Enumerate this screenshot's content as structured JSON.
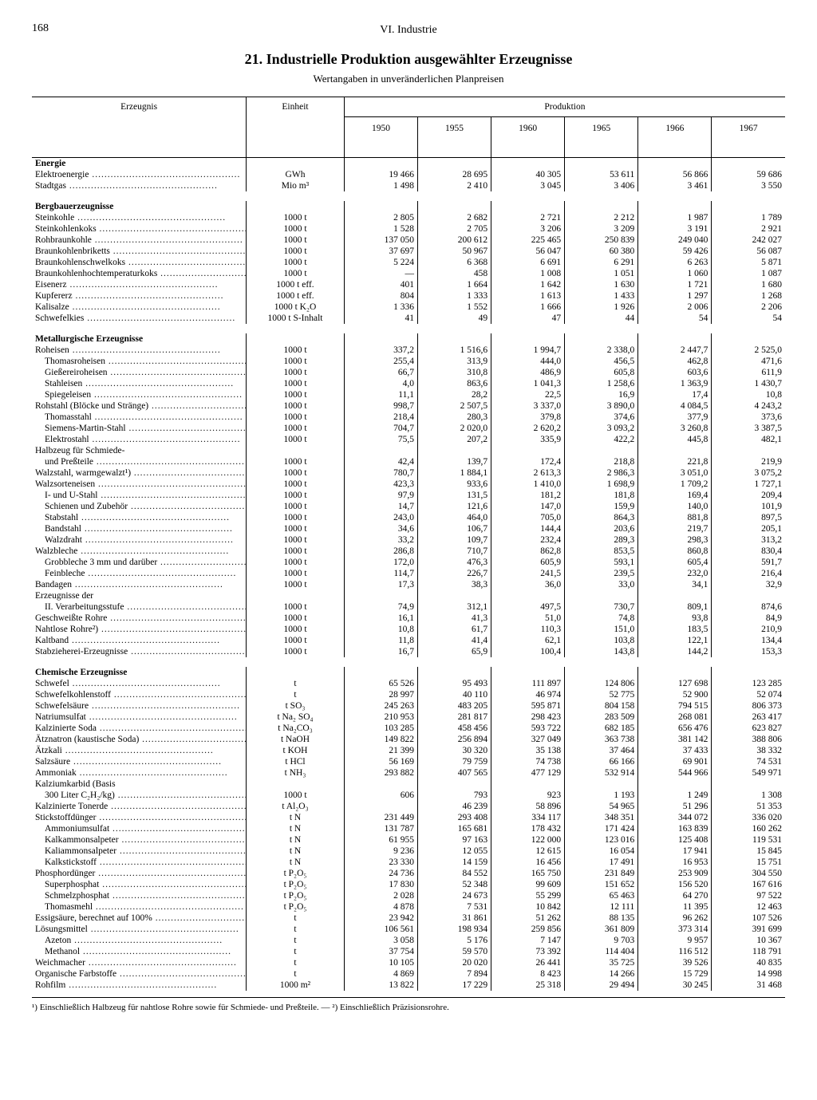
{
  "page_number": "168",
  "chapter": "VI. Industrie",
  "title": "21. Industrielle Produktion ausgewählter Erzeugnisse",
  "subtitle": "Wertangaben in unveränderlichen Planpreisen",
  "header": {
    "erzeugnis": "Erzeugnis",
    "einheit": "Einheit",
    "produktion": "Produktion",
    "years": [
      "1950",
      "1955",
      "1960",
      "1965",
      "1966",
      "1967"
    ]
  },
  "footnote": "¹) Einschließlich Halbzeug für nahtlose Rohre sowie für Schmiede- und Preßteile. — ²) Einschließlich Präzisionsrohre.",
  "rows": [
    {
      "type": "group",
      "label": "Energie"
    },
    {
      "label": "Elektroenergie",
      "unit": "GWh",
      "v": [
        "19 466",
        "28 695",
        "40 305",
        "53 611",
        "56 866",
        "59 686"
      ]
    },
    {
      "label": "Stadtgas",
      "unit": "Mio m³",
      "v": [
        "1 498",
        "2 410",
        "3 045",
        "3 406",
        "3 461",
        "3 550"
      ]
    },
    {
      "type": "spacer"
    },
    {
      "type": "group",
      "label": "Bergbauerzeugnisse"
    },
    {
      "label": "Steinkohle",
      "unit": "1000 t",
      "v": [
        "2 805",
        "2 682",
        "2 721",
        "2 212",
        "1 987",
        "1 789"
      ]
    },
    {
      "label": "Steinkohlenkoks",
      "unit": "1000 t",
      "v": [
        "1 528",
        "2 705",
        "3 206",
        "3 209",
        "3 191",
        "2 921"
      ]
    },
    {
      "label": "Rohbraunkohle",
      "unit": "1000 t",
      "v": [
        "137 050",
        "200 612",
        "225 465",
        "250 839",
        "249 040",
        "242 027"
      ]
    },
    {
      "label": "Braunkohlenbriketts",
      "unit": "1000 t",
      "v": [
        "37 697",
        "50 967",
        "56 047",
        "60 380",
        "59 426",
        "56 087"
      ]
    },
    {
      "label": "Braunkohlenschwelkoks",
      "unit": "1000 t",
      "v": [
        "5 224",
        "6 368",
        "6 691",
        "6 291",
        "6 263",
        "5 871"
      ]
    },
    {
      "label": "Braunkohlenhochtemperaturkoks",
      "unit": "1000 t",
      "v": [
        "—",
        "458",
        "1 008",
        "1 051",
        "1 060",
        "1 087"
      ]
    },
    {
      "label": "Eisenerz",
      "unit": "1000 t eff.",
      "v": [
        "401",
        "1 664",
        "1 642",
        "1 630",
        "1 721",
        "1 680"
      ]
    },
    {
      "label": "Kupfererz",
      "unit": "1000 t eff.",
      "v": [
        "804",
        "1 333",
        "1 613",
        "1 433",
        "1 297",
        "1 268"
      ]
    },
    {
      "label": "Kalisalze",
      "unit": "1000 t K₂O",
      "v": [
        "1 336",
        "1 552",
        "1 666",
        "1 926",
        "2 006",
        "2 206"
      ]
    },
    {
      "label": "Schwefelkies",
      "unit": "1000 t S-Inhalt",
      "v": [
        "41",
        "49",
        "47",
        "44",
        "54",
        "54"
      ]
    },
    {
      "type": "spacer"
    },
    {
      "type": "group",
      "label": "Metallurgische Erzeugnisse"
    },
    {
      "label": "Roheisen",
      "unit": "1000 t",
      "v": [
        "337,2",
        "1 516,6",
        "1 994,7",
        "2 338,0",
        "2 447,7",
        "2 525,0"
      ]
    },
    {
      "label": "Thomasroheisen",
      "indent": 1,
      "unit": "1000 t",
      "v": [
        "255,4",
        "313,9",
        "444,0",
        "456,5",
        "462,8",
        "471,6"
      ]
    },
    {
      "label": "Gießereiroheisen",
      "indent": 1,
      "unit": "1000 t",
      "v": [
        "66,7",
        "310,8",
        "486,9",
        "605,8",
        "603,6",
        "611,9"
      ]
    },
    {
      "label": "Stahleisen",
      "indent": 1,
      "unit": "1000 t",
      "v": [
        "4,0",
        "863,6",
        "1 041,3",
        "1 258,6",
        "1 363,9",
        "1 430,7"
      ]
    },
    {
      "label": "Spiegeleisen",
      "indent": 1,
      "unit": "1000 t",
      "v": [
        "11,1",
        "28,2",
        "22,5",
        "16,9",
        "17,4",
        "10,8"
      ]
    },
    {
      "label": "Rohstahl (Blöcke und Stränge)",
      "unit": "1000 t",
      "v": [
        "998,7",
        "2 507,5",
        "3 337,0",
        "3 890,0",
        "4 084,5",
        "4 243,2"
      ]
    },
    {
      "label": "Thomasstahl",
      "indent": 1,
      "unit": "1000 t",
      "v": [
        "218,4",
        "280,3",
        "379,8",
        "374,6",
        "377,9",
        "373,6"
      ]
    },
    {
      "label": "Siemens-Martin-Stahl",
      "indent": 1,
      "unit": "1000 t",
      "v": [
        "704,7",
        "2 020,0",
        "2 620,2",
        "3 093,2",
        "3 260,8",
        "3 387,5"
      ]
    },
    {
      "label": "Elektrostahl",
      "indent": 1,
      "unit": "1000 t",
      "v": [
        "75,5",
        "207,2",
        "335,9",
        "422,2",
        "445,8",
        "482,1"
      ]
    },
    {
      "label": "Halbzeug für Schmiede-",
      "nodots": true,
      "unit": "",
      "v": [
        "",
        "",
        "",
        "",
        "",
        ""
      ]
    },
    {
      "label": "und Preßteile",
      "indent": 1,
      "unit": "1000 t",
      "v": [
        "42,4",
        "139,7",
        "172,4",
        "218,8",
        "221,8",
        "219,9"
      ]
    },
    {
      "label": "Walzstahl, warmgewalzt¹)",
      "unit": "1000 t",
      "v": [
        "780,7",
        "1 884,1",
        "2 613,3",
        "2 986,3",
        "3 051,0",
        "3 075,2"
      ]
    },
    {
      "label": "Walzsorteneisen",
      "unit": "1000 t",
      "v": [
        "423,3",
        "933,6",
        "1 410,0",
        "1 698,9",
        "1 709,2",
        "1 727,1"
      ]
    },
    {
      "label": "I- und U-Stahl",
      "indent": 1,
      "unit": "1000 t",
      "v": [
        "97,9",
        "131,5",
        "181,2",
        "181,8",
        "169,4",
        "209,4"
      ]
    },
    {
      "label": "Schienen und Zubehör",
      "indent": 1,
      "unit": "1000 t",
      "v": [
        "14,7",
        "121,6",
        "147,0",
        "159,9",
        "140,0",
        "101,9"
      ]
    },
    {
      "label": "Stabstahl",
      "indent": 1,
      "unit": "1000 t",
      "v": [
        "243,0",
        "464,0",
        "705,0",
        "864,3",
        "881,8",
        "897,5"
      ]
    },
    {
      "label": "Bandstahl",
      "indent": 1,
      "unit": "1000 t",
      "v": [
        "34,6",
        "106,7",
        "144,4",
        "203,6",
        "219,7",
        "205,1"
      ]
    },
    {
      "label": "Walzdraht",
      "indent": 1,
      "unit": "1000 t",
      "v": [
        "33,2",
        "109,7",
        "232,4",
        "289,3",
        "298,3",
        "313,2"
      ]
    },
    {
      "label": "Walzbleche",
      "unit": "1000 t",
      "v": [
        "286,8",
        "710,7",
        "862,8",
        "853,5",
        "860,8",
        "830,4"
      ]
    },
    {
      "label": "Grobbleche 3 mm und darüber",
      "indent": 1,
      "unit": "1000 t",
      "v": [
        "172,0",
        "476,3",
        "605,9",
        "593,1",
        "605,4",
        "591,7"
      ]
    },
    {
      "label": "Feinbleche",
      "indent": 1,
      "unit": "1000 t",
      "v": [
        "114,7",
        "226,7",
        "241,5",
        "239,5",
        "232,0",
        "216,4"
      ]
    },
    {
      "label": "Bandagen",
      "unit": "1000 t",
      "v": [
        "17,3",
        "38,3",
        "36,0",
        "33,0",
        "34,1",
        "32,9"
      ]
    },
    {
      "label": "Erzeugnisse der",
      "nodots": true,
      "unit": "",
      "v": [
        "",
        "",
        "",
        "",
        "",
        ""
      ]
    },
    {
      "label": "II. Verarbeitungsstufe",
      "indent": 1,
      "unit": "1000 t",
      "v": [
        "74,9",
        "312,1",
        "497,5",
        "730,7",
        "809,1",
        "874,6"
      ]
    },
    {
      "label": "Geschweißte Rohre",
      "unit": "1000 t",
      "v": [
        "16,1",
        "41,3",
        "51,0",
        "74,8",
        "93,8",
        "84,9"
      ]
    },
    {
      "label": "Nahtlose Rohre²)",
      "unit": "1000 t",
      "v": [
        "10,8",
        "61,7",
        "110,3",
        "151,0",
        "183,5",
        "210,9"
      ]
    },
    {
      "label": "Kaltband",
      "unit": "1000 t",
      "v": [
        "11,8",
        "41,4",
        "62,1",
        "103,8",
        "122,1",
        "134,4"
      ]
    },
    {
      "label": "Stabzieherei-Erzeugnisse",
      "unit": "1000 t",
      "v": [
        "16,7",
        "65,9",
        "100,4",
        "143,8",
        "144,2",
        "153,3"
      ]
    },
    {
      "type": "spacer"
    },
    {
      "type": "group",
      "label": "Chemische Erzeugnisse"
    },
    {
      "label": "Schwefel",
      "unit": "t",
      "v": [
        "65 526",
        "95 493",
        "111 897",
        "124 806",
        "127 698",
        "123 285"
      ]
    },
    {
      "label": "Schwefelkohlenstoff",
      "unit": "t",
      "v": [
        "28 997",
        "40 110",
        "46 974",
        "52 775",
        "52 900",
        "52 074"
      ]
    },
    {
      "label": "Schwefelsäure",
      "unit": "t SO₃",
      "v": [
        "245 263",
        "483 205",
        "595 871",
        "804 158",
        "794 515",
        "806 373"
      ]
    },
    {
      "label": "Natriumsulfat",
      "unit": "t Na₂ SO₄",
      "v": [
        "210 953",
        "281 817",
        "298 423",
        "283 509",
        "268 081",
        "263 417"
      ]
    },
    {
      "label": "Kalzinierte Soda",
      "unit": "t Na₂CO₃",
      "v": [
        "103 285",
        "458 456",
        "593 722",
        "682 185",
        "656 476",
        "623 827"
      ]
    },
    {
      "label": "Ätznatron (kaustische Soda)",
      "unit": "t NaOH",
      "v": [
        "149 822",
        "256 894",
        "327 049",
        "363 738",
        "381 142",
        "388 806"
      ]
    },
    {
      "label": "Ätzkali",
      "unit": "t KOH",
      "v": [
        "21 399",
        "30 320",
        "35 138",
        "37 464",
        "37 433",
        "38 332"
      ]
    },
    {
      "label": "Salzsäure",
      "unit": "t HCl",
      "v": [
        "56 169",
        "79 759",
        "74 738",
        "66 166",
        "69 901",
        "74 531"
      ]
    },
    {
      "label": "Ammoniak",
      "unit": "t NH₃",
      "v": [
        "293 882",
        "407 565",
        "477 129",
        "532 914",
        "544 966",
        "549 971"
      ]
    },
    {
      "label": "Kalziumkarbid (Basis",
      "nodots": true,
      "unit": "",
      "v": [
        "",
        "",
        "",
        "",
        "",
        ""
      ]
    },
    {
      "label": "300 Liter C₂H₂/kg)",
      "indent": 1,
      "unit": "1000 t",
      "v": [
        "606",
        "793",
        "923",
        "1 193",
        "1 249",
        "1 308"
      ]
    },
    {
      "label": "Kalzinierte Tonerde",
      "unit": "t Al₂O₃",
      "v": [
        "",
        "46 239",
        "58 896",
        "54 965",
        "51 296",
        "51 353"
      ]
    },
    {
      "label": "Stickstoffdünger",
      "unit": "t N",
      "v": [
        "231 449",
        "293 408",
        "334 117",
        "348 351",
        "344 072",
        "336 020"
      ]
    },
    {
      "label": "Ammoniumsulfat",
      "indent": 1,
      "unit": "t N",
      "v": [
        "131 787",
        "165 681",
        "178 432",
        "171 424",
        "163 839",
        "160 262"
      ]
    },
    {
      "label": "Kalkammonsalpeter",
      "indent": 1,
      "unit": "t N",
      "v": [
        "61 955",
        "97 163",
        "122 000",
        "123 016",
        "125 408",
        "119 531"
      ]
    },
    {
      "label": "Kaliammonsalpeter",
      "indent": 1,
      "unit": "t N",
      "v": [
        "9 236",
        "12 055",
        "12 615",
        "16 054",
        "17 941",
        "15 845"
      ]
    },
    {
      "label": "Kalkstickstoff",
      "indent": 1,
      "unit": "t N",
      "v": [
        "23 330",
        "14 159",
        "16 456",
        "17 491",
        "16 953",
        "15 751"
      ]
    },
    {
      "label": "Phosphordünger",
      "unit": "t P₂O₅",
      "v": [
        "24 736",
        "84 552",
        "165 750",
        "231 849",
        "253 909",
        "304 550"
      ]
    },
    {
      "label": "Superphosphat",
      "indent": 1,
      "unit": "t P₂O₅",
      "v": [
        "17 830",
        "52 348",
        "99 609",
        "151 652",
        "156 520",
        "167 616"
      ]
    },
    {
      "label": "Schmelzphosphat",
      "indent": 1,
      "unit": "t P₂O₅",
      "v": [
        "2 028",
        "24 673",
        "55 299",
        "65 463",
        "64 270",
        "97 522"
      ]
    },
    {
      "label": "Thomasmehl",
      "indent": 1,
      "unit": "t P₂O₅",
      "v": [
        "4 878",
        "7 531",
        "10 842",
        "12 111",
        "11 395",
        "12 463"
      ]
    },
    {
      "label": "Essigsäure, berechnet auf 100%",
      "unit": "t",
      "v": [
        "23 942",
        "31 861",
        "51 262",
        "88 135",
        "96 262",
        "107 526"
      ]
    },
    {
      "label": "Lösungsmittel",
      "unit": "t",
      "v": [
        "106 561",
        "198 934",
        "259 856",
        "361 809",
        "373 314",
        "391 699"
      ]
    },
    {
      "label": "Azeton",
      "indent": 1,
      "unit": "t",
      "v": [
        "3 058",
        "5 176",
        "7 147",
        "9 703",
        "9 957",
        "10 367"
      ]
    },
    {
      "label": "Methanol",
      "indent": 1,
      "unit": "t",
      "v": [
        "37 754",
        "59 570",
        "73 392",
        "114 404",
        "116 512",
        "118 791"
      ]
    },
    {
      "label": "Weichmacher",
      "unit": "t",
      "v": [
        "10 105",
        "20 020",
        "26 441",
        "35 725",
        "39 526",
        "40 835"
      ]
    },
    {
      "label": "Organische Farbstoffe",
      "unit": "t",
      "v": [
        "4 869",
        "7 894",
        "8 423",
        "14 266",
        "15 729",
        "14 998"
      ]
    },
    {
      "label": "Rohfilm",
      "unit": "1000 m²",
      "v": [
        "13 822",
        "17 229",
        "25 318",
        "29 494",
        "30 245",
        "31 468"
      ]
    }
  ]
}
